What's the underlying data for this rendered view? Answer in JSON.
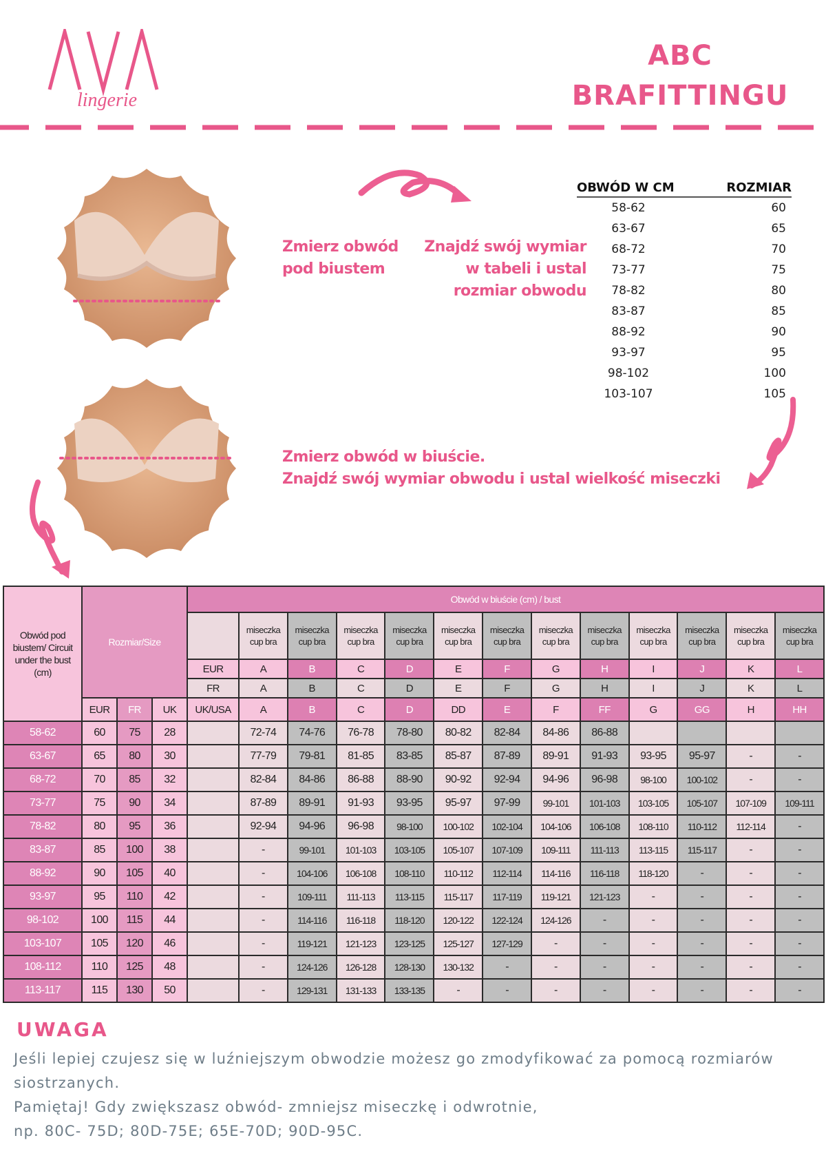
{
  "logo": {
    "text": "AVA",
    "sub": "lingerie"
  },
  "header": {
    "title_line1": "ABC",
    "title_line2": "BRAFITTINGU"
  },
  "colors": {
    "accent": "#e8578a",
    "header_pink": "#de85b6",
    "light_pink": "#f7c4dc",
    "very_light": "#ecdadf",
    "gray": "#bfbfbf",
    "note_text": "#6e7d88"
  },
  "steps": {
    "step1": [
      "Zmierz obwód",
      "pod biustem"
    ],
    "step2": [
      "Znajdź swój wymiar",
      "w tabeli i ustal",
      "rozmiar obwodu"
    ],
    "step3": [
      "Zmierz obwód w biuście.",
      "Znajdź swój wymiar obwodu i ustal wielkość miseczki"
    ]
  },
  "band_table": {
    "headers": [
      "OBWÓD W CM",
      "ROZMIAR"
    ],
    "rows": [
      [
        "58-62",
        "60"
      ],
      [
        "63-67",
        "65"
      ],
      [
        "68-72",
        "70"
      ],
      [
        "73-77",
        "75"
      ],
      [
        "78-82",
        "80"
      ],
      [
        "83-87",
        "85"
      ],
      [
        "88-92",
        "90"
      ],
      [
        "93-97",
        "95"
      ],
      [
        "98-102",
        "100"
      ],
      [
        "103-107",
        "105"
      ]
    ]
  },
  "size_table": {
    "col1_header": "Obwód pod biustem/ Circuit under the bust (cm)",
    "size_header": "Rozmiar/Size",
    "bust_header": "Obwód w biuście (cm) / bust",
    "cup_label": [
      "miseczka",
      "cup bra"
    ],
    "size_systems": [
      "EUR",
      "FR",
      "UK"
    ],
    "row_labels": {
      "eur": "EUR",
      "fr": "FR",
      "uk": "UK/USA"
    },
    "cups_eur": [
      "A",
      "B",
      "C",
      "D",
      "E",
      "F",
      "G",
      "H",
      "I",
      "J",
      "K",
      "L"
    ],
    "cups_fr": [
      "A",
      "B",
      "C",
      "D",
      "E",
      "F",
      "G",
      "H",
      "I",
      "J",
      "K",
      "L"
    ],
    "cups_uk": [
      "A",
      "B",
      "C",
      "D",
      "DD",
      "E",
      "F",
      "FF",
      "G",
      "GG",
      "H",
      "HH"
    ],
    "rows": [
      {
        "under": "58-62",
        "eur": "60",
        "fr": "75",
        "uk": "28",
        "bust": [
          "72-74",
          "74-76",
          "76-78",
          "78-80",
          "80-82",
          "82-84",
          "84-86",
          "86-88",
          "",
          "",
          "",
          ""
        ]
      },
      {
        "under": "63-67",
        "eur": "65",
        "fr": "80",
        "uk": "30",
        "bust": [
          "77-79",
          "79-81",
          "81-85",
          "83-85",
          "85-87",
          "87-89",
          "89-91",
          "91-93",
          "93-95",
          "95-97",
          "-",
          "-"
        ]
      },
      {
        "under": "68-72",
        "eur": "70",
        "fr": "85",
        "uk": "32",
        "bust": [
          "82-84",
          "84-86",
          "86-88",
          "88-90",
          "90-92",
          "92-94",
          "94-96",
          "96-98",
          "98-100",
          "100-102",
          "-",
          "-"
        ]
      },
      {
        "under": "73-77",
        "eur": "75",
        "fr": "90",
        "uk": "34",
        "bust": [
          "87-89",
          "89-91",
          "91-93",
          "93-95",
          "95-97",
          "97-99",
          "99-101",
          "101-103",
          "103-105",
          "105-107",
          "107-109",
          "109-111"
        ]
      },
      {
        "under": "78-82",
        "eur": "80",
        "fr": "95",
        "uk": "36",
        "bust": [
          "92-94",
          "94-96",
          "96-98",
          "98-100",
          "100-102",
          "102-104",
          "104-106",
          "106-108",
          "108-110",
          "110-112",
          "112-114",
          "-"
        ]
      },
      {
        "under": "83-87",
        "eur": "85",
        "fr": "100",
        "uk": "38",
        "bust": [
          "-",
          "99-101",
          "101-103",
          "103-105",
          "105-107",
          "107-109",
          "109-111",
          "111-113",
          "113-115",
          "115-117",
          "-",
          "-"
        ]
      },
      {
        "under": "88-92",
        "eur": "90",
        "fr": "105",
        "uk": "40",
        "bust": [
          "-",
          "104-106",
          "106-108",
          "108-110",
          "110-112",
          "112-114",
          "114-116",
          "116-118",
          "118-120",
          "-",
          "-",
          "-"
        ]
      },
      {
        "under": "93-97",
        "eur": "95",
        "fr": "110",
        "uk": "42",
        "bust": [
          "-",
          "109-111",
          "111-113",
          "113-115",
          "115-117",
          "117-119",
          "119-121",
          "121-123",
          "-",
          "-",
          "-",
          "-"
        ]
      },
      {
        "under": "98-102",
        "eur": "100",
        "fr": "115",
        "uk": "44",
        "bust": [
          "-",
          "114-116",
          "116-118",
          "118-120",
          "120-122",
          "122-124",
          "124-126",
          "-",
          "-",
          "-",
          "-",
          "-"
        ]
      },
      {
        "under": "103-107",
        "eur": "105",
        "fr": "120",
        "uk": "46",
        "bust": [
          "-",
          "119-121",
          "121-123",
          "123-125",
          "125-127",
          "127-129",
          "-",
          "-",
          "-",
          "-",
          "-",
          "-"
        ]
      },
      {
        "under": "108-112",
        "eur": "110",
        "fr": "125",
        "uk": "48",
        "bust": [
          "-",
          "124-126",
          "126-128",
          "128-130",
          "130-132",
          "-",
          "-",
          "-",
          "-",
          "-",
          "-",
          "-"
        ]
      },
      {
        "under": "113-117",
        "eur": "115",
        "fr": "130",
        "uk": "50",
        "bust": [
          "-",
          "129-131",
          "131-133",
          "133-135",
          "-",
          "-",
          "-",
          "-",
          "-",
          "-",
          "-",
          "-"
        ]
      }
    ]
  },
  "note": {
    "title": "UWAGA",
    "lines": [
      "Jeśli lepiej czujesz się w luźniejszym obwodzie możesz go zmodyfikować za pomocą rozmiarów siostrzanych.",
      "Pamiętaj! Gdy zwiększasz obwód- zmniejsz miseczkę i odwrotnie,",
      "np. 80C- 75D; 80D-75E; 65E-70D; 90D-95C."
    ]
  }
}
